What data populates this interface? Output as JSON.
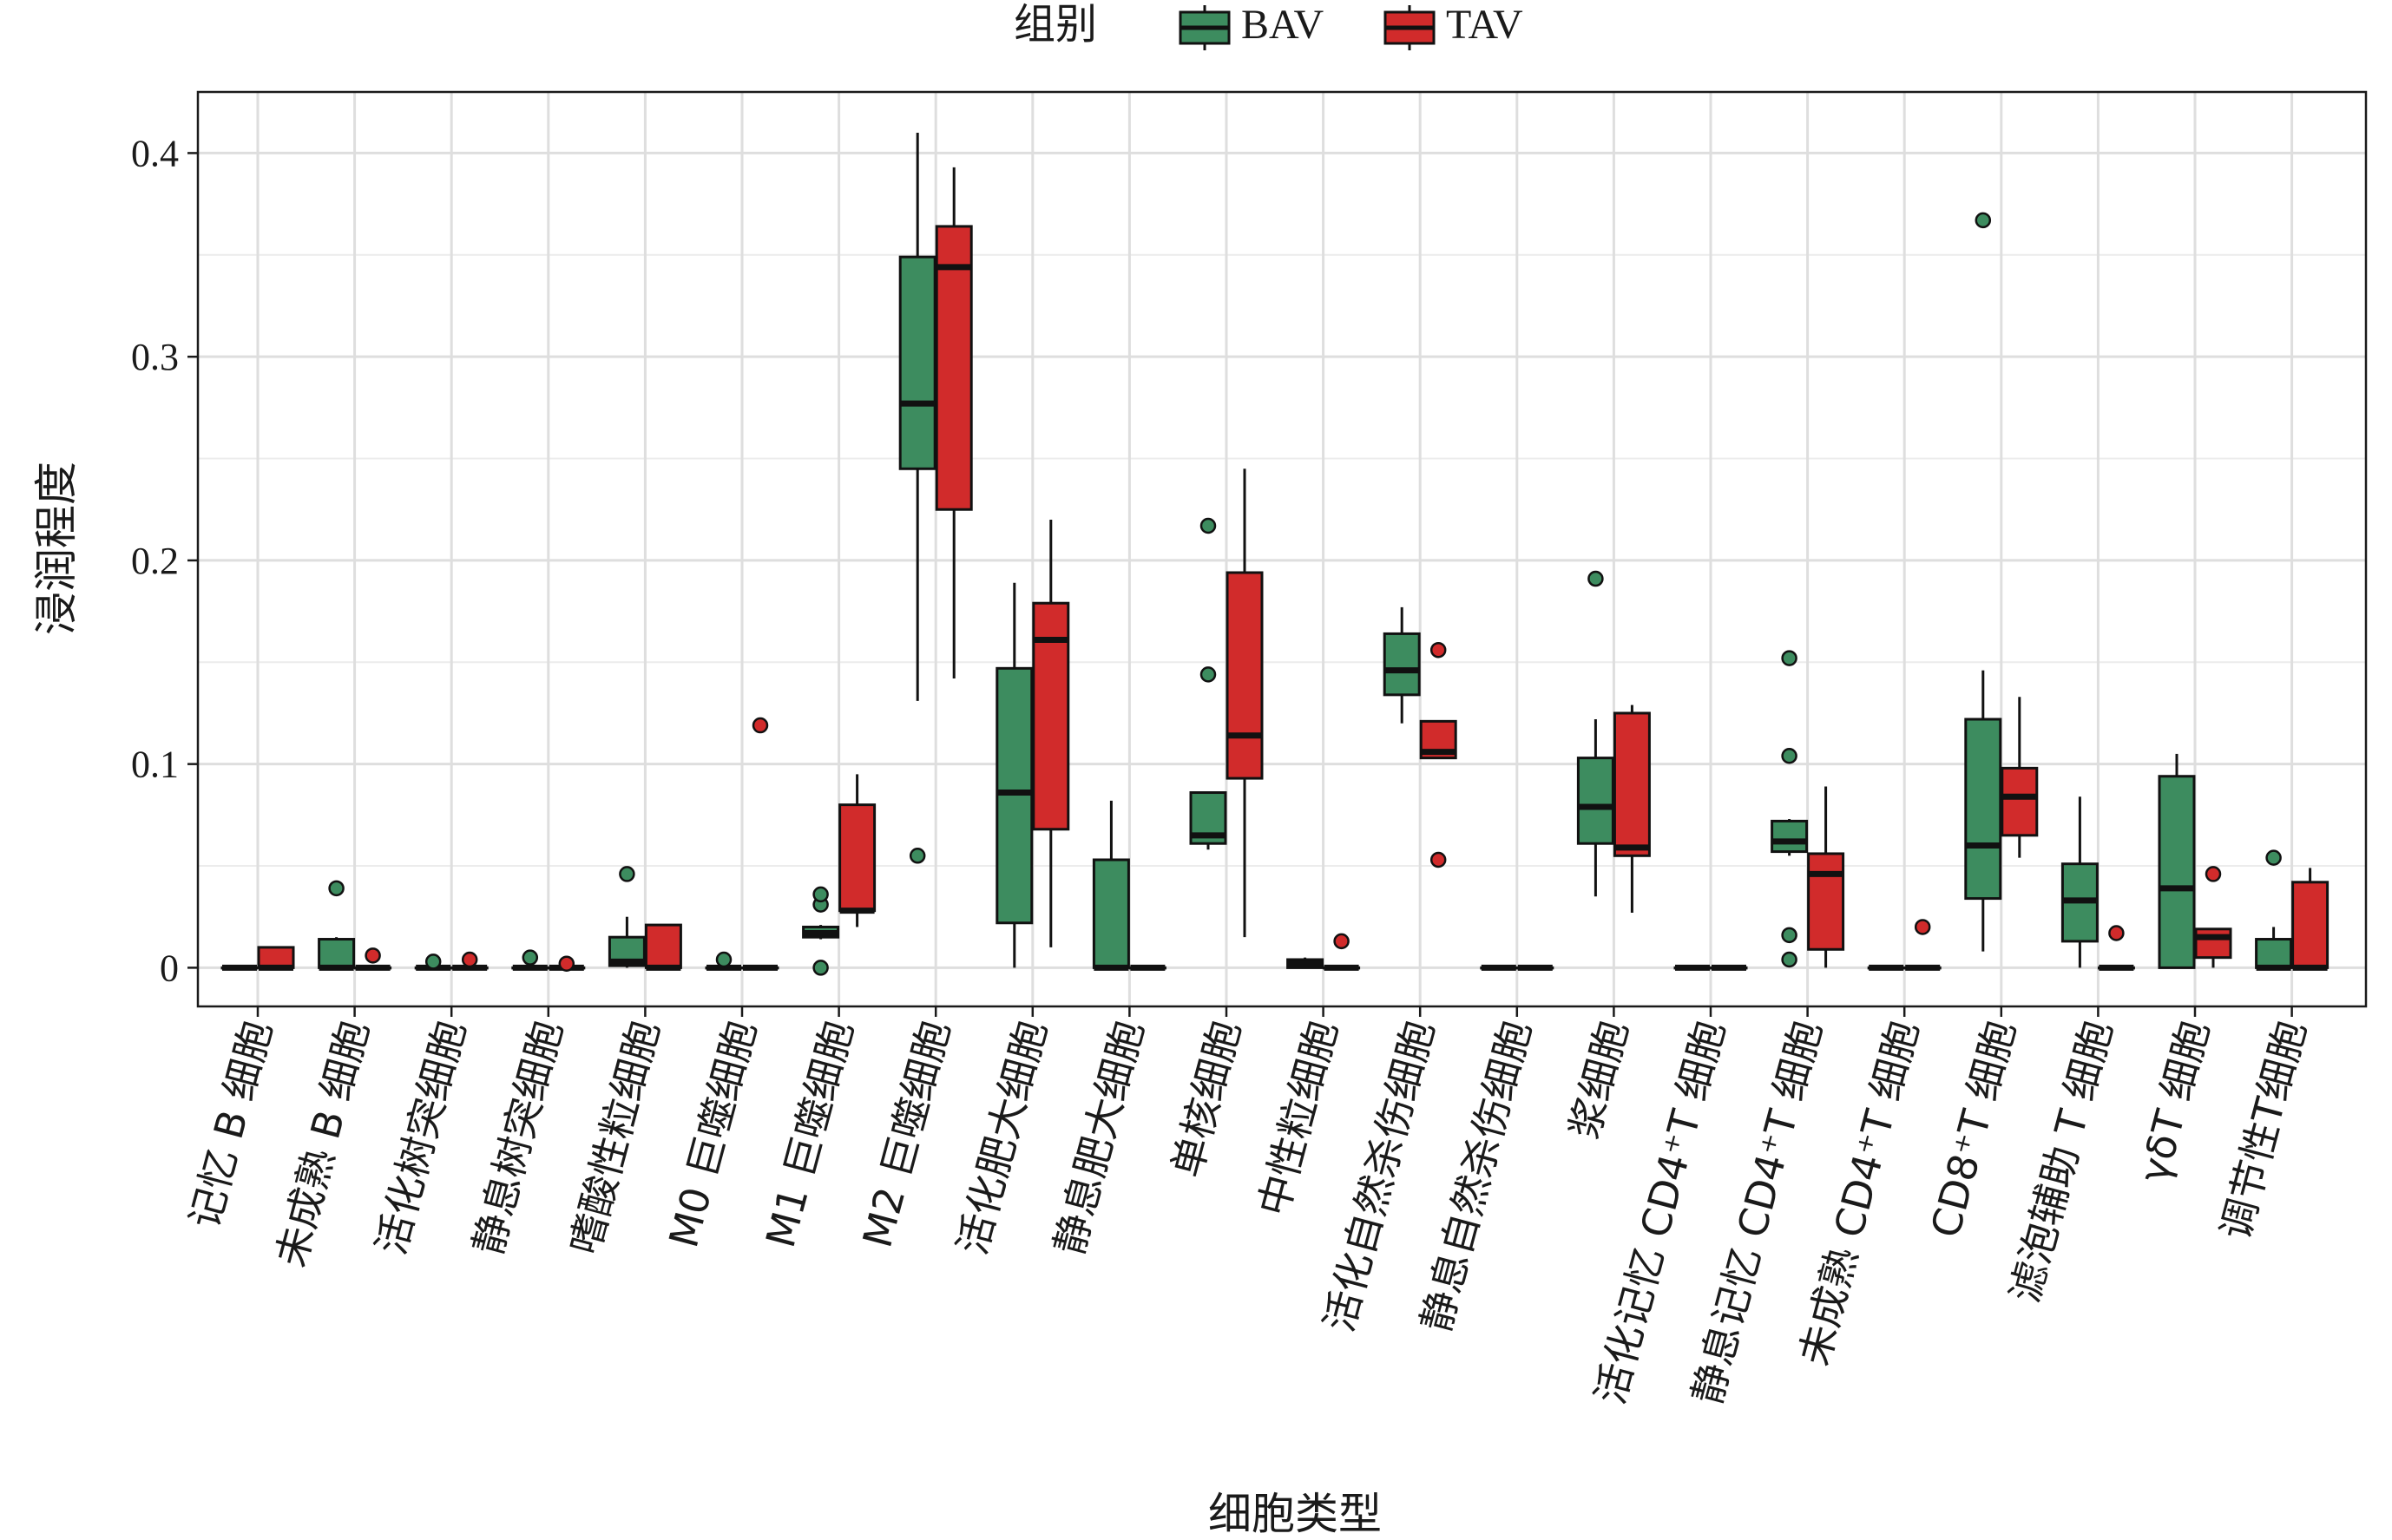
{
  "chart_data": {
    "type": "box",
    "title": "",
    "xlabel": "细胞类型",
    "ylabel": "浸润程度",
    "ylim": [
      -0.019,
      0.43
    ],
    "yticks": [
      0,
      0.1,
      0.2,
      0.3,
      0.4
    ],
    "ytick_labels": [
      "0",
      "0.1",
      "0.2",
      "0.3",
      "0.4"
    ],
    "grid": true,
    "legend": {
      "title": "组别",
      "position": "top-center",
      "entries": [
        "BAV",
        "TAV"
      ]
    },
    "categories": [
      "记忆 B 细胞",
      "未成熟 B 细胞",
      "活化树突细胞",
      "静息树突细胞",
      "嗜酸性粒细胞",
      "M0 巨噬细胞",
      "M1 巨噬细胞",
      "M2 巨噬细胞",
      "活化肥大细胞",
      "静息肥大细胞",
      "单核细胞",
      "中性粒细胞",
      "活化自然杀伤细胞",
      "静息自然杀伤细胞",
      "浆细胞",
      "活化记忆 CD4⁺T 细胞",
      "静息记忆 CD4⁺T 细胞",
      "未成熟 CD4⁺T 细胞",
      "CD8⁺T 细胞",
      "滤泡辅助 T 细胞",
      "γδT 细胞",
      "调节性T细胞"
    ],
    "series": [
      {
        "name": "BAV",
        "color": "#3d8c5f",
        "boxes": [
          {
            "wlo": 0,
            "q1": 0,
            "med": 0,
            "q3": 0,
            "whi": 0,
            "out": []
          },
          {
            "wlo": 0,
            "q1": 0,
            "med": 0,
            "q3": 0.014,
            "whi": 0.015,
            "out": [
              0.039
            ]
          },
          {
            "wlo": 0,
            "q1": 0,
            "med": 0,
            "q3": 0,
            "whi": 0,
            "out": [
              0.003
            ]
          },
          {
            "wlo": 0,
            "q1": 0,
            "med": 0,
            "q3": 0,
            "whi": 0,
            "out": [
              0.005
            ]
          },
          {
            "wlo": 0,
            "q1": 0.001,
            "med": 0.003,
            "q3": 0.015,
            "whi": 0.025,
            "out": [
              0.046
            ]
          },
          {
            "wlo": 0,
            "q1": 0,
            "med": 0,
            "q3": 0,
            "whi": 0,
            "out": [
              0.004
            ]
          },
          {
            "wlo": 0.014,
            "q1": 0.015,
            "med": 0.017,
            "q3": 0.02,
            "whi": 0.021,
            "out": [
              0,
              0.031,
              0.036
            ]
          },
          {
            "wlo": 0.131,
            "q1": 0.245,
            "med": 0.277,
            "q3": 0.349,
            "whi": 0.41,
            "out": [
              0.055
            ]
          },
          {
            "wlo": 0,
            "q1": 0.022,
            "med": 0.086,
            "q3": 0.147,
            "whi": 0.189,
            "out": []
          },
          {
            "wlo": 0,
            "q1": 0,
            "med": 0,
            "q3": 0.053,
            "whi": 0.082,
            "out": []
          },
          {
            "wlo": 0.058,
            "q1": 0.061,
            "med": 0.065,
            "q3": 0.086,
            "whi": 0.086,
            "out": [
              0.144,
              0.217
            ]
          },
          {
            "wlo": 0,
            "q1": 0,
            "med": 0.002,
            "q3": 0.004,
            "whi": 0.005,
            "out": []
          },
          {
            "wlo": 0.12,
            "q1": 0.134,
            "med": 0.146,
            "q3": 0.164,
            "whi": 0.177,
            "out": []
          },
          {
            "wlo": 0,
            "q1": 0,
            "med": 0,
            "q3": 0,
            "whi": 0,
            "out": []
          },
          {
            "wlo": 0.035,
            "q1": 0.061,
            "med": 0.079,
            "q3": 0.103,
            "whi": 0.122,
            "out": [
              0.191
            ]
          },
          {
            "wlo": 0,
            "q1": 0,
            "med": 0,
            "q3": 0,
            "whi": 0,
            "out": []
          },
          {
            "wlo": 0.055,
            "q1": 0.057,
            "med": 0.062,
            "q3": 0.072,
            "whi": 0.073,
            "out": [
              0.004,
              0.016,
              0.104,
              0.152
            ]
          },
          {
            "wlo": 0,
            "q1": 0,
            "med": 0,
            "q3": 0,
            "whi": 0,
            "out": []
          },
          {
            "wlo": 0.008,
            "q1": 0.034,
            "med": 0.06,
            "q3": 0.122,
            "whi": 0.146,
            "out": [
              0.367
            ]
          },
          {
            "wlo": 0,
            "q1": 0.013,
            "med": 0.033,
            "q3": 0.051,
            "whi": 0.084,
            "out": []
          },
          {
            "wlo": 0,
            "q1": 0,
            "med": 0.039,
            "q3": 0.094,
            "whi": 0.105,
            "out": []
          },
          {
            "wlo": 0,
            "q1": 0,
            "med": 0,
            "q3": 0.014,
            "whi": 0.02,
            "out": [
              0.054
            ]
          }
        ]
      },
      {
        "name": "TAV",
        "color": "#d12b2b",
        "boxes": [
          {
            "wlo": 0,
            "q1": 0,
            "med": 0,
            "q3": 0.01,
            "whi": 0.01,
            "out": []
          },
          {
            "wlo": 0,
            "q1": 0,
            "med": 0,
            "q3": 0,
            "whi": 0,
            "out": [
              0.006
            ]
          },
          {
            "wlo": 0,
            "q1": 0,
            "med": 0,
            "q3": 0,
            "whi": 0,
            "out": [
              0.004
            ]
          },
          {
            "wlo": 0,
            "q1": 0,
            "med": 0,
            "q3": 0,
            "whi": 0,
            "out": [
              0.002
            ]
          },
          {
            "wlo": 0,
            "q1": 0,
            "med": 0,
            "q3": 0.021,
            "whi": 0.021,
            "out": []
          },
          {
            "wlo": 0,
            "q1": 0,
            "med": 0,
            "q3": 0,
            "whi": 0,
            "out": [
              0.119
            ]
          },
          {
            "wlo": 0.02,
            "q1": 0.028,
            "med": 0.028,
            "q3": 0.08,
            "whi": 0.095,
            "out": []
          },
          {
            "wlo": 0.142,
            "q1": 0.225,
            "med": 0.344,
            "q3": 0.364,
            "whi": 0.393,
            "out": []
          },
          {
            "wlo": 0.01,
            "q1": 0.068,
            "med": 0.161,
            "q3": 0.179,
            "whi": 0.22,
            "out": []
          },
          {
            "wlo": 0,
            "q1": 0,
            "med": 0,
            "q3": 0,
            "whi": 0,
            "out": []
          },
          {
            "wlo": 0.015,
            "q1": 0.093,
            "med": 0.114,
            "q3": 0.194,
            "whi": 0.245,
            "out": []
          },
          {
            "wlo": 0,
            "q1": 0,
            "med": 0,
            "q3": 0,
            "whi": 0,
            "out": [
              0.013
            ]
          },
          {
            "wlo": 0.103,
            "q1": 0.103,
            "med": 0.106,
            "q3": 0.121,
            "whi": 0.121,
            "out": [
              0.053,
              0.156
            ]
          },
          {
            "wlo": 0,
            "q1": 0,
            "med": 0,
            "q3": 0,
            "whi": 0,
            "out": []
          },
          {
            "wlo": 0.027,
            "q1": 0.055,
            "med": 0.059,
            "q3": 0.125,
            "whi": 0.129,
            "out": []
          },
          {
            "wlo": 0,
            "q1": 0,
            "med": 0,
            "q3": 0,
            "whi": 0,
            "out": []
          },
          {
            "wlo": 0,
            "q1": 0.009,
            "med": 0.046,
            "q3": 0.056,
            "whi": 0.089,
            "out": []
          },
          {
            "wlo": 0,
            "q1": 0,
            "med": 0,
            "q3": 0,
            "whi": 0,
            "out": [
              0.02
            ]
          },
          {
            "wlo": 0.054,
            "q1": 0.065,
            "med": 0.084,
            "q3": 0.098,
            "whi": 0.133,
            "out": []
          },
          {
            "wlo": 0,
            "q1": 0,
            "med": 0,
            "q3": 0,
            "whi": 0,
            "out": [
              0.017
            ]
          },
          {
            "wlo": 0,
            "q1": 0.005,
            "med": 0.015,
            "q3": 0.019,
            "whi": 0.019,
            "out": [
              0.046
            ]
          },
          {
            "wlo": 0,
            "q1": 0,
            "med": 0,
            "q3": 0.042,
            "whi": 0.049,
            "out": []
          }
        ]
      }
    ]
  }
}
